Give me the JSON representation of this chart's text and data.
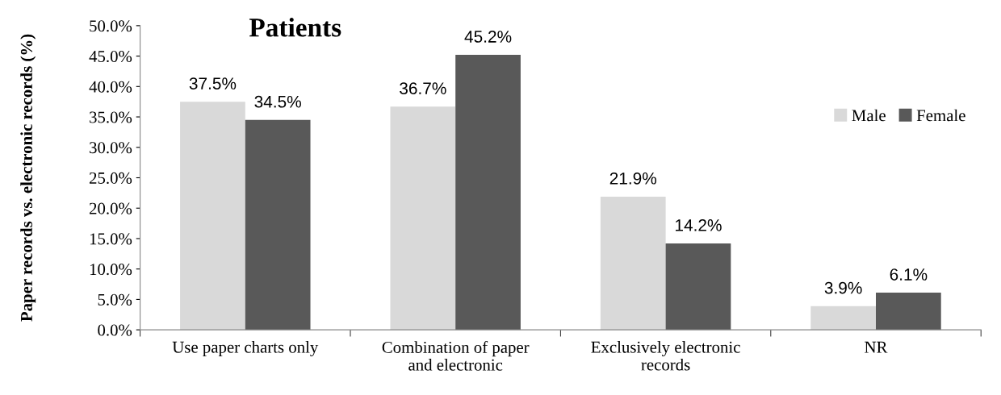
{
  "chart_data": {
    "type": "bar",
    "title": "Patients",
    "ylabel": "Paper records vs. electronic records (%)",
    "categories": [
      "Use paper charts only",
      "Combination of paper\nand electronic",
      "Exclusively electronic\nrecords",
      "NR"
    ],
    "series": [
      {
        "name": "Male",
        "color": "#d9d9d9",
        "values": [
          37.5,
          36.7,
          21.9,
          3.9
        ],
        "value_labels": [
          "37.5%",
          "36.7%",
          "21.9%",
          "3.9%"
        ]
      },
      {
        "name": "Female",
        "color": "#595959",
        "values": [
          34.5,
          45.2,
          14.2,
          6.1
        ],
        "value_labels": [
          "34.5%",
          "45.2%",
          "14.2%",
          "6.1%"
        ]
      }
    ],
    "ylim": [
      0,
      50
    ],
    "yticks": [
      {
        "value": 0,
        "label": "0.0%"
      },
      {
        "value": 5,
        "label": "5.0%"
      },
      {
        "value": 10,
        "label": "10.0%"
      },
      {
        "value": 15,
        "label": "15.0%"
      },
      {
        "value": 20,
        "label": "20.0%"
      },
      {
        "value": 25,
        "label": "25.0%"
      },
      {
        "value": 30,
        "label": "30.0%"
      },
      {
        "value": 35,
        "label": "35.0%"
      },
      {
        "value": 40,
        "label": "40.0%"
      },
      {
        "value": 45,
        "label": "45.0%"
      },
      {
        "value": 50,
        "label": "50.0%"
      }
    ],
    "grid": false,
    "legend": "right"
  }
}
